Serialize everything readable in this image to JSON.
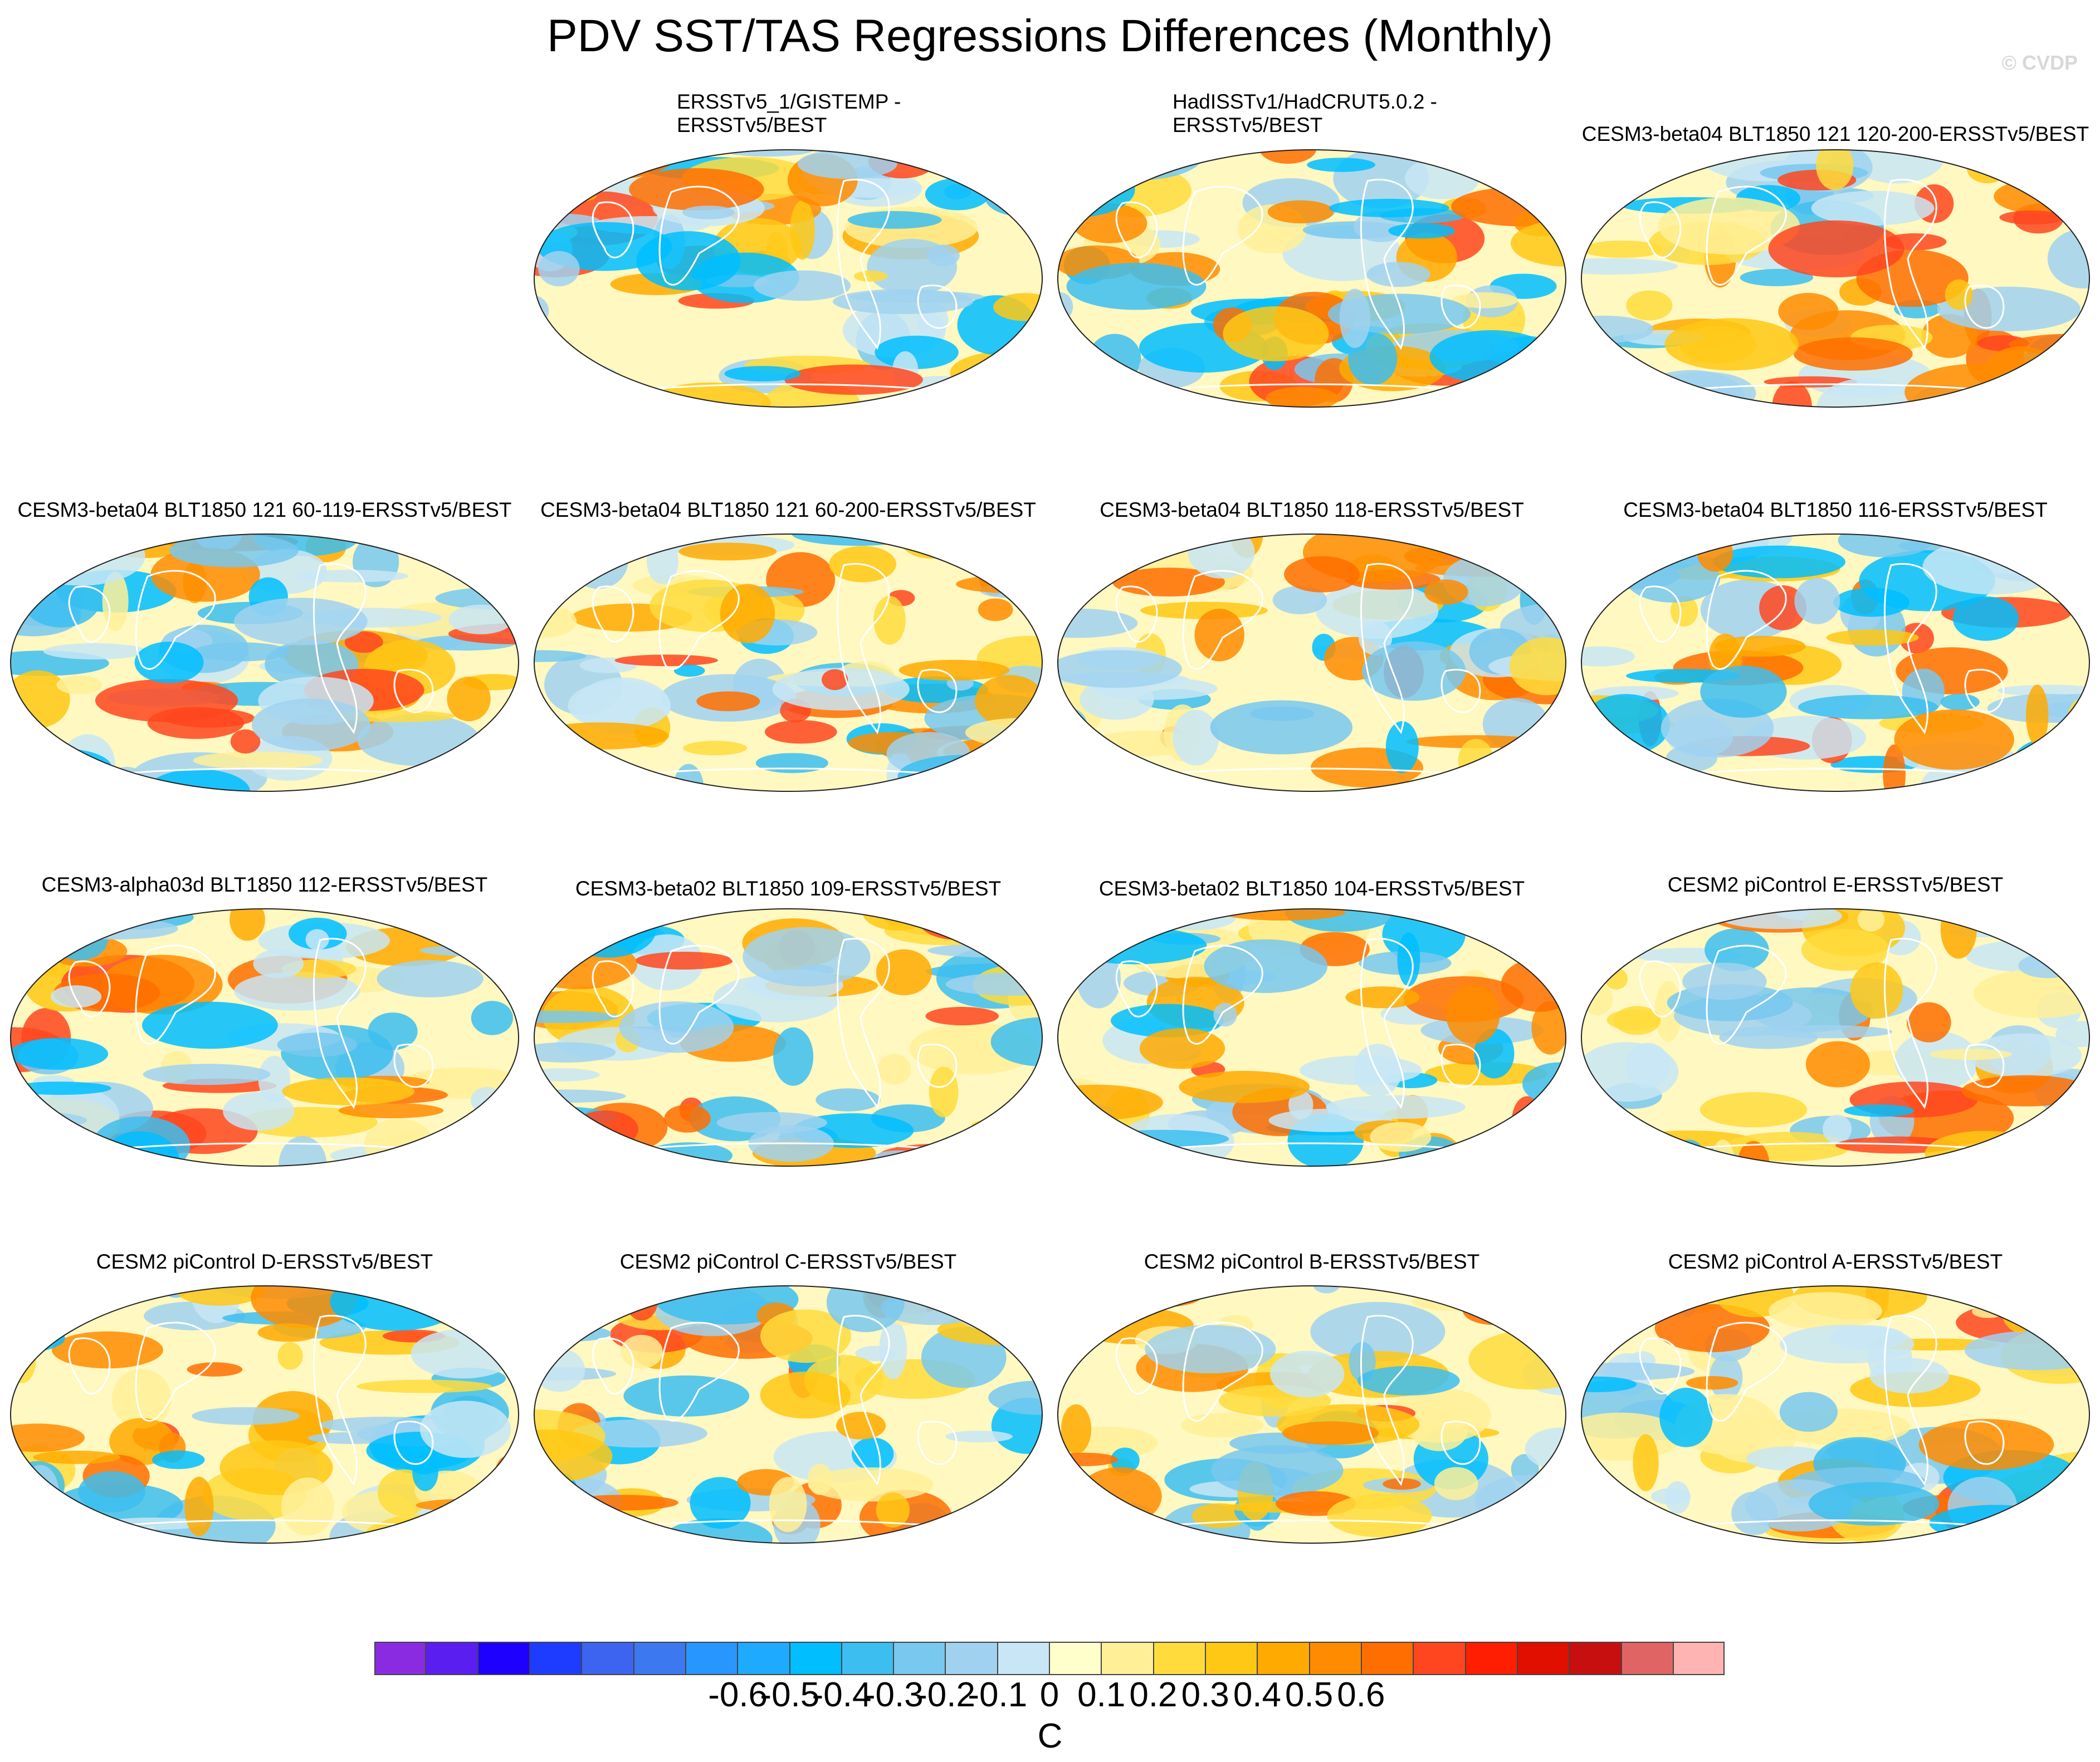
{
  "figure": {
    "title": "PDV SST/TAS Regressions Differences (Monthly)",
    "credit": "© CVDP"
  },
  "chart_data": {
    "type": "heatmap",
    "title": "PDV SST/TAS Regressions Differences (Monthly)",
    "units": "C",
    "projection": "global map (elliptical)",
    "panels": [
      {
        "title": "ERSSTv5_1/GISTEMP - ERSSTv5/BEST",
        "title_lines": [
          "ERSSTv5_1/GISTEMP -",
          "ERSSTv5/BEST"
        ]
      },
      {
        "title": "HadISSTv1/HadCRUT5.0.2 - ERSSTv5/BEST",
        "title_lines": [
          "HadISSTv1/HadCRUT5.0.2 -",
          "ERSSTv5/BEST"
        ]
      },
      {
        "title": "CESM3-beta04 BLT1850 121 120-200-ERSSTv5/BEST"
      },
      {
        "title": "CESM3-beta04 BLT1850 121 60-119-ERSSTv5/BEST"
      },
      {
        "title": "CESM3-beta04 BLT1850 121 60-200-ERSSTv5/BEST"
      },
      {
        "title": "CESM3-beta04 BLT1850 118-ERSSTv5/BEST"
      },
      {
        "title": "CESM3-beta04 BLT1850 116-ERSSTv5/BEST"
      },
      {
        "title": "CESM3-alpha03d BLT1850 112-ERSSTv5/BEST"
      },
      {
        "title": "CESM3-beta02 BLT1850 109-ERSSTv5/BEST"
      },
      {
        "title": "CESM3-beta02 BLT1850 104-ERSSTv5/BEST"
      },
      {
        "title": "CESM2 piControl E-ERSSTv5/BEST"
      },
      {
        "title": "CESM2 piControl D-ERSSTv5/BEST"
      },
      {
        "title": "CESM2 piControl C-ERSSTv5/BEST"
      },
      {
        "title": "CESM2 piControl B-ERSSTv5/BEST"
      },
      {
        "title": "CESM2 piControl A-ERSSTv5/BEST"
      }
    ],
    "colorbar": {
      "tick_labels": [
        "-0.6",
        "-0.5",
        "-0.4",
        "-0.3",
        "-0.2",
        "-0.1",
        "0",
        "0.1",
        "0.2",
        "0.3",
        "0.4",
        "0.5",
        "0.6"
      ],
      "tick_values": [
        -0.6,
        -0.5,
        -0.4,
        -0.3,
        -0.2,
        -0.1,
        0,
        0.1,
        0.2,
        0.3,
        0.4,
        0.5,
        0.6
      ],
      "colors": [
        "#8a2be2",
        "#5a1ef0",
        "#1e00ff",
        "#1e3cff",
        "#3c64f0",
        "#3c78f0",
        "#2896ff",
        "#1eaaff",
        "#00beff",
        "#3cbef0",
        "#78c8ef",
        "#a0d2f0",
        "#c8e6f5",
        "#ffffcc",
        "#fff098",
        "#ffdc3c",
        "#ffc814",
        "#ffaa00",
        "#ff8c00",
        "#ff6e00",
        "#ff461e",
        "#ff1e00",
        "#e10f00",
        "#c80f0f",
        "#e16464",
        "#ffb4b4"
      ],
      "label": "C"
    }
  }
}
